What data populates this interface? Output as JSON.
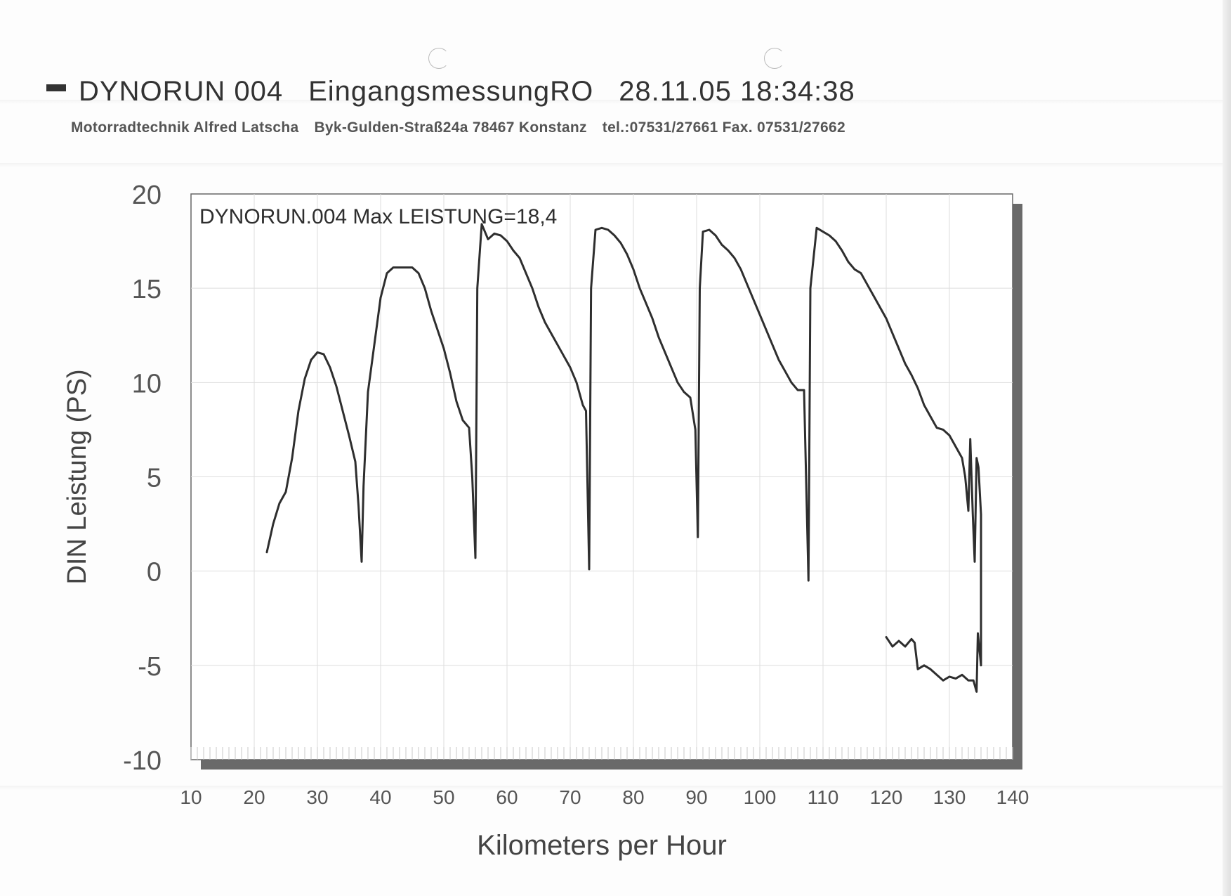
{
  "header": {
    "title_parts": [
      "DYNORUN 004",
      "EingangsmessungRO",
      "28.11.05 18:34:38"
    ],
    "company": [
      "Motorradtechnik Alfred Latscha",
      "Byk-Gulden-Straß24a 78467 Konstanz",
      "tel.:07531/27661 Fax. 07531/27662"
    ]
  },
  "chart_data": {
    "type": "line",
    "annotation": "DYNORUN.004  Max LEISTUNG=18,4",
    "xlabel": "Kilometers per Hour",
    "ylabel": "DIN Leistung (PS)",
    "xlim": [
      10,
      140
    ],
    "ylim": [
      -10,
      20
    ],
    "xticks": [
      10,
      20,
      30,
      40,
      50,
      60,
      70,
      80,
      90,
      100,
      110,
      120,
      130,
      140
    ],
    "yticks": [
      20,
      15,
      10,
      5,
      0,
      -5,
      -10
    ],
    "grid": true,
    "series": [
      {
        "segments": [
          [
            [
              22,
              1
            ],
            [
              23,
              2.5
            ],
            [
              24,
              3.6
            ],
            [
              25,
              4.2
            ],
            [
              26,
              6
            ],
            [
              27,
              8.5
            ],
            [
              28,
              10.2
            ],
            [
              29,
              11.2
            ],
            [
              30,
              11.6
            ],
            [
              31,
              11.5
            ],
            [
              32,
              10.8
            ],
            [
              33,
              9.8
            ],
            [
              34,
              8.5
            ],
            [
              35,
              7.2
            ],
            [
              36,
              5.8
            ],
            [
              36.5,
              3.5
            ],
            [
              37,
              0.5
            ],
            [
              37.3,
              4.5
            ],
            [
              38,
              9.5
            ],
            [
              39,
              12
            ],
            [
              40,
              14.5
            ],
            [
              41,
              15.8
            ],
            [
              42,
              16.1
            ],
            [
              45,
              16.1
            ],
            [
              46,
              15.8
            ],
            [
              47,
              15
            ],
            [
              48,
              13.8
            ],
            [
              49,
              12.8
            ],
            [
              50,
              11.8
            ],
            [
              51,
              10.5
            ],
            [
              52,
              9
            ],
            [
              53,
              8
            ],
            [
              54,
              7.6
            ],
            [
              54.5,
              5
            ],
            [
              55,
              0.7
            ],
            [
              55.3,
              15
            ],
            [
              56,
              18.4
            ],
            [
              57,
              17.6
            ],
            [
              58,
              17.9
            ],
            [
              59,
              17.8
            ],
            [
              60,
              17.5
            ],
            [
              61,
              17
            ],
            [
              62,
              16.6
            ],
            [
              63,
              15.8
            ],
            [
              64,
              15
            ],
            [
              65,
              14
            ],
            [
              66,
              13.2
            ],
            [
              67,
              12.6
            ],
            [
              68,
              12
            ],
            [
              69,
              11.4
            ],
            [
              70,
              10.8
            ],
            [
              71,
              10
            ],
            [
              72,
              8.8
            ],
            [
              72.5,
              8.5
            ],
            [
              73,
              0.1
            ],
            [
              73.3,
              15
            ],
            [
              74,
              18.1
            ],
            [
              75,
              18.2
            ],
            [
              76,
              18.1
            ],
            [
              77,
              17.8
            ],
            [
              78,
              17.4
            ],
            [
              79,
              16.8
            ],
            [
              80,
              16
            ],
            [
              81,
              15
            ],
            [
              82,
              14.2
            ],
            [
              83,
              13.4
            ],
            [
              84,
              12.4
            ],
            [
              85,
              11.6
            ],
            [
              86,
              10.8
            ],
            [
              87,
              10
            ],
            [
              88,
              9.5
            ],
            [
              89,
              9.2
            ],
            [
              89.8,
              7.5
            ],
            [
              90.2,
              1.8
            ],
            [
              90.5,
              15
            ],
            [
              91,
              18
            ],
            [
              92,
              18.1
            ],
            [
              93,
              17.8
            ],
            [
              94,
              17.3
            ],
            [
              95,
              17
            ],
            [
              96,
              16.6
            ],
            [
              97,
              16
            ],
            [
              98,
              15.2
            ],
            [
              99,
              14.4
            ],
            [
              100,
              13.6
            ],
            [
              101,
              12.8
            ],
            [
              102,
              12
            ],
            [
              103,
              11.2
            ],
            [
              104,
              10.6
            ],
            [
              105,
              10
            ],
            [
              106,
              9.6
            ],
            [
              107,
              9.6
            ],
            [
              107.7,
              -0.5
            ],
            [
              108,
              15
            ],
            [
              109,
              18.2
            ],
            [
              110,
              18
            ],
            [
              111,
              17.8
            ],
            [
              112,
              17.5
            ],
            [
              113,
              17
            ],
            [
              114,
              16.4
            ],
            [
              115,
              16
            ],
            [
              116,
              15.8
            ],
            [
              117,
              15.2
            ],
            [
              118,
              14.6
            ],
            [
              119,
              14
            ],
            [
              120,
              13.4
            ],
            [
              121,
              12.6
            ],
            [
              122,
              11.8
            ],
            [
              123,
              11
            ],
            [
              124,
              10.4
            ],
            [
              125,
              9.7
            ],
            [
              126,
              8.8
            ],
            [
              127,
              8.2
            ],
            [
              128,
              7.6
            ],
            [
              129,
              7.5
            ],
            [
              130,
              7.2
            ],
            [
              131,
              6.6
            ],
            [
              132,
              6
            ],
            [
              132.5,
              5
            ],
            [
              133,
              3.2
            ],
            [
              133.3,
              7
            ],
            [
              133.7,
              3
            ],
            [
              134,
              0.5
            ],
            [
              134.3,
              6
            ],
            [
              134.6,
              5.5
            ],
            [
              135,
              3
            ]
          ],
          [
            [
              135,
              3
            ],
            [
              135,
              -5
            ],
            [
              134.5,
              -3.3
            ],
            [
              134.3,
              -6.4
            ],
            [
              133.8,
              -5.8
            ],
            [
              133,
              -5.8
            ],
            [
              132,
              -5.5
            ],
            [
              131,
              -5.7
            ],
            [
              130,
              -5.6
            ],
            [
              129,
              -5.8
            ],
            [
              128,
              -5.5
            ],
            [
              127,
              -5.2
            ],
            [
              126,
              -5
            ],
            [
              125,
              -5.2
            ],
            [
              124.5,
              -3.8
            ],
            [
              124,
              -3.6
            ],
            [
              123,
              -4
            ],
            [
              122,
              -3.7
            ],
            [
              121,
              -4
            ],
            [
              120,
              -3.5
            ]
          ]
        ]
      }
    ]
  }
}
